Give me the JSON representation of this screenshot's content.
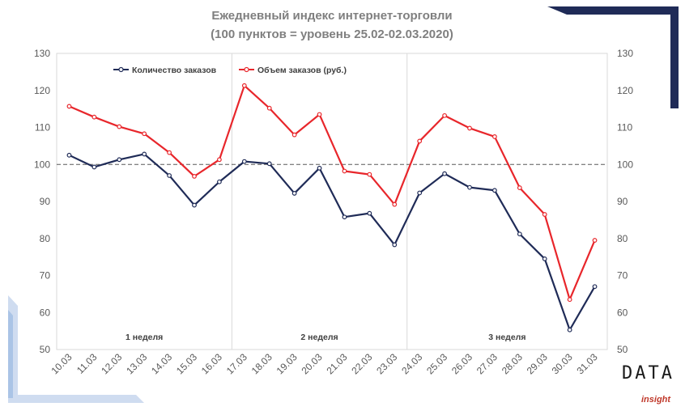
{
  "chart_data": {
    "type": "line",
    "title": "Ежедневный индекс интернет-торговли",
    "subtitle": "(100 пунктов = уровень 25.02-02.03.2020)",
    "categories": [
      "10.03",
      "11.03",
      "12.03",
      "13.03",
      "14.03",
      "15.03",
      "16.03",
      "17.03",
      "18.03",
      "19.03",
      "20.03",
      "21.03",
      "22.03",
      "23.03",
      "24.03",
      "25.03",
      "26.03",
      "27.03",
      "28.03",
      "29.03",
      "30.03",
      "31.03"
    ],
    "series": [
      {
        "name": "Количество заказов",
        "color": "#1f2b57",
        "values": [
          102.5,
          99.3,
          101.3,
          102.8,
          97.0,
          89.0,
          95.3,
          100.8,
          100.2,
          92.2,
          99.0,
          85.8,
          86.8,
          78.3,
          92.3,
          97.5,
          93.8,
          93.0,
          81.2,
          74.5,
          55.3,
          67.0
        ]
      },
      {
        "name": "Объем заказов (руб.)",
        "color": "#e8262b",
        "values": [
          115.7,
          112.8,
          110.2,
          108.3,
          103.2,
          96.8,
          101.3,
          121.3,
          115.2,
          108.0,
          113.5,
          98.2,
          97.3,
          89.2,
          106.3,
          113.2,
          109.8,
          107.5,
          93.7,
          86.5,
          63.5,
          79.5
        ]
      }
    ],
    "ylim": [
      50,
      130
    ],
    "yticks": [
      50,
      60,
      70,
      80,
      90,
      100,
      110,
      120,
      130
    ],
    "reference_line": 100,
    "week_labels": [
      "1 неделя",
      "2 неделя",
      "3 неделя"
    ],
    "week_separators_after": [
      "16.03",
      "23.03"
    ],
    "legend_position": "top-left",
    "xlabel": "",
    "ylabel": ""
  },
  "logo": {
    "main": "DATA",
    "sub": "insight"
  },
  "colors": {
    "navy": "#1f2b57",
    "red": "#e8262b",
    "accent_blue": "#aac4e6"
  }
}
